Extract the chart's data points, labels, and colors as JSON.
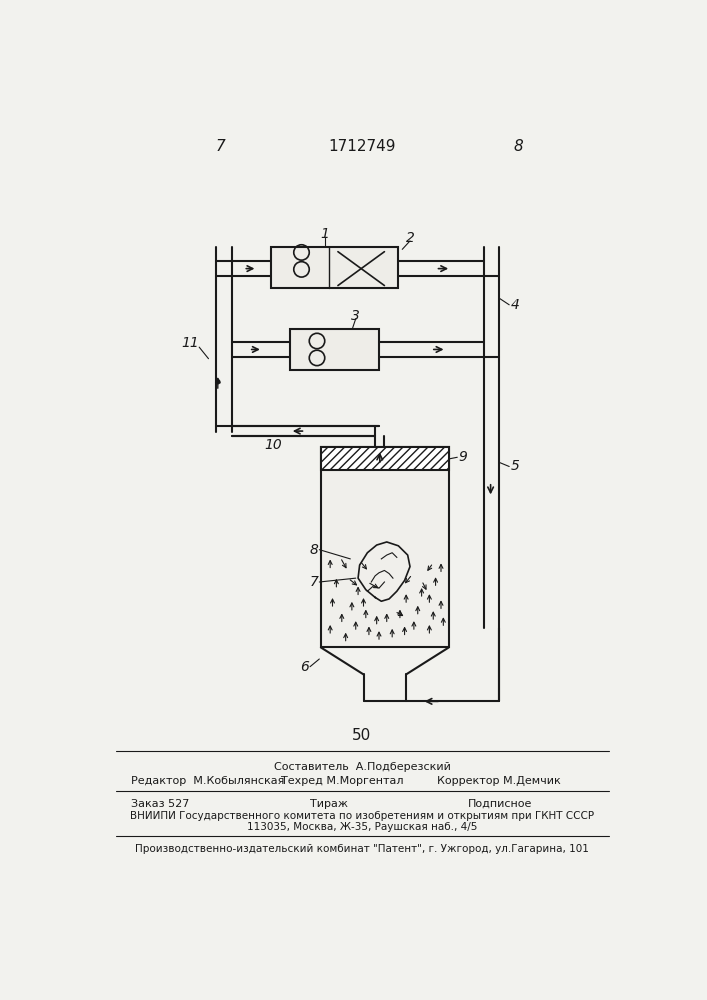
{
  "page_number_left": "7",
  "page_number_right": "8",
  "patent_number": "1712749",
  "page_number_bottom": "50",
  "bg_color": "#f2f2ee",
  "line_color": "#1a1a1a",
  "footer_text1": "Составитель  А.Подберезский",
  "footer_editor": "Редактор  М.Кобылянская",
  "footer_tehred": "Техред М.Моргентал",
  "footer_korrektor": "Корректор М.Демчик",
  "footer_zakaz": "Заказ 527",
  "footer_tirazh": "Тираж",
  "footer_podpisnoe": "Подписное",
  "footer_vniiipi": "ВНИИПИ Государственного комитета по изобретениям и открытиям при ГКНТ СССР",
  "footer_address": "113035, Москва, Ж-35, Раушская наб., 4/5",
  "footer_proizv": "Производственно-издательский комбинат \"Патент\", г. Ужгород, ул.Гагарина, 101"
}
